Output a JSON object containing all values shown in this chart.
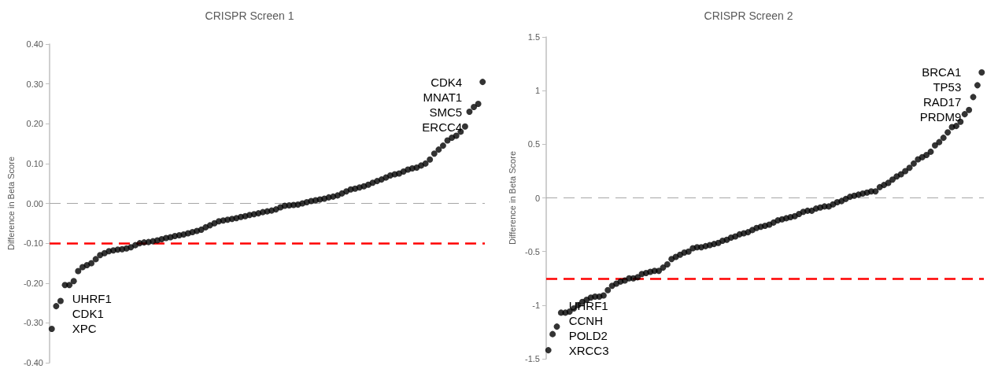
{
  "chart_data": [
    {
      "type": "scatter",
      "title": "CRISPR Screen 1",
      "ylabel": "Difference in Beta Score",
      "marker": "circle",
      "grid": false,
      "tick_labels": "y",
      "categories": [
        null,
        null,
        null,
        null,
        null,
        null,
        null,
        null,
        null,
        null,
        null,
        null,
        null,
        null,
        null,
        null,
        null,
        null,
        null,
        null,
        null,
        null,
        null,
        null,
        null,
        null,
        null,
        null,
        null,
        null,
        null,
        null,
        null,
        null,
        null,
        null,
        null,
        null,
        null,
        null,
        null,
        null,
        null,
        null,
        null,
        null,
        null,
        null,
        null,
        null,
        null,
        null,
        null,
        null,
        null,
        null,
        null,
        null,
        null,
        null,
        null,
        null,
        null,
        null,
        null,
        null,
        null,
        null,
        null,
        null,
        null,
        null,
        null,
        null,
        null,
        null,
        null,
        null,
        null,
        null,
        null,
        null,
        null,
        null,
        null,
        null,
        null,
        null,
        null,
        null,
        null,
        null,
        null,
        null,
        null,
        null,
        null,
        null,
        null
      ],
      "series": [
        {
          "color": "#000000",
          "values": [
            -0.315,
            -0.258,
            -0.245,
            -0.205,
            -0.205,
            -0.195,
            -0.17,
            -0.16,
            -0.155,
            -0.15,
            -0.14,
            -0.13,
            -0.125,
            -0.12,
            -0.118,
            -0.116,
            -0.115,
            -0.113,
            -0.11,
            -0.105,
            -0.1,
            -0.098,
            -0.097,
            -0.095,
            -0.093,
            -0.09,
            -0.087,
            -0.085,
            -0.082,
            -0.08,
            -0.078,
            -0.075,
            -0.072,
            -0.069,
            -0.066,
            -0.06,
            -0.055,
            -0.05,
            -0.045,
            -0.043,
            -0.041,
            -0.039,
            -0.037,
            -0.034,
            -0.032,
            -0.029,
            -0.027,
            -0.025,
            -0.022,
            -0.02,
            -0.018,
            -0.015,
            -0.01,
            -0.006,
            -0.005,
            -0.004,
            -0.003,
            0,
            0.003,
            0.006,
            0.008,
            0.01,
            0.012,
            0.015,
            0.017,
            0.02,
            0.025,
            0.03,
            0.035,
            0.037,
            0.04,
            0.043,
            0.047,
            0.052,
            0.056,
            0.06,
            0.065,
            0.07,
            0.073,
            0.075,
            0.08,
            0.085,
            0.088,
            0.09,
            0.095,
            0.1,
            0.11,
            0.125,
            0.135,
            0.145,
            0.158,
            0.165,
            0.17,
            0.18,
            0.193,
            0.23,
            0.242,
            0.25,
            0.305
          ]
        }
      ],
      "ylim": [
        -0.4,
        0.4
      ],
      "yticks": [
        {
          "value": -0.4,
          "label": "-0.40"
        },
        {
          "value": -0.3,
          "label": "-0.30"
        },
        {
          "value": -0.2,
          "label": "-0.20"
        },
        {
          "value": -0.1,
          "label": "-0.10"
        },
        {
          "value": 0,
          "label": "0.00"
        },
        {
          "value": 0.1,
          "label": "0.10"
        },
        {
          "value": 0.2,
          "label": "0.20"
        },
        {
          "value": 0.3,
          "label": "0.30"
        },
        {
          "value": 0.4,
          "label": "0.40"
        }
      ],
      "ref_lines": [
        {
          "axis": "y",
          "value": 0,
          "color": "#a6a6a6",
          "line_style": "dashed"
        },
        {
          "axis": "y",
          "value": -0.1,
          "color": "#ff0000",
          "line_style": "dashed"
        }
      ],
      "annotations": [
        "CDK4",
        "MNAT1",
        "SMC5",
        "ERCC4",
        "UHRF1",
        "CDK1",
        "XPC"
      ]
    },
    {
      "type": "scatter",
      "title": "CRISPR Screen 2",
      "ylabel": "Difference in Beta Score",
      "marker": "circle",
      "grid": false,
      "tick_labels": "y",
      "categories": [
        null,
        null,
        null,
        null,
        null,
        null,
        null,
        null,
        null,
        null,
        null,
        null,
        null,
        null,
        null,
        null,
        null,
        null,
        null,
        null,
        null,
        null,
        null,
        null,
        null,
        null,
        null,
        null,
        null,
        null,
        null,
        null,
        null,
        null,
        null,
        null,
        null,
        null,
        null,
        null,
        null,
        null,
        null,
        null,
        null,
        null,
        null,
        null,
        null,
        null,
        null,
        null,
        null,
        null,
        null,
        null,
        null,
        null,
        null,
        null,
        null,
        null,
        null,
        null,
        null,
        null,
        null,
        null,
        null,
        null,
        null,
        null,
        null,
        null,
        null,
        null,
        null,
        null,
        null,
        null,
        null,
        null,
        null,
        null,
        null,
        null,
        null,
        null,
        null,
        null,
        null,
        null,
        null,
        null,
        null,
        null,
        null,
        null,
        null,
        null,
        null,
        null,
        null
      ],
      "series": [
        {
          "color": "#000000",
          "values": [
            -1.42,
            -1.27,
            -1.2,
            -1.07,
            -1.07,
            -1.06,
            -1.03,
            -1.0,
            -0.97,
            -0.95,
            -0.93,
            -0.92,
            -0.92,
            -0.91,
            -0.86,
            -0.82,
            -0.8,
            -0.78,
            -0.77,
            -0.75,
            -0.75,
            -0.74,
            -0.71,
            -0.7,
            -0.69,
            -0.68,
            -0.68,
            -0.65,
            -0.62,
            -0.57,
            -0.55,
            -0.53,
            -0.51,
            -0.5,
            -0.47,
            -0.46,
            -0.46,
            -0.45,
            -0.44,
            -0.43,
            -0.42,
            -0.4,
            -0.39,
            -0.37,
            -0.36,
            -0.34,
            -0.33,
            -0.32,
            -0.3,
            -0.28,
            -0.27,
            -0.26,
            -0.25,
            -0.23,
            -0.21,
            -0.2,
            -0.19,
            -0.18,
            -0.17,
            -0.15,
            -0.13,
            -0.12,
            -0.12,
            -0.1,
            -0.09,
            -0.08,
            -0.08,
            -0.06,
            -0.04,
            -0.03,
            -0.01,
            0.01,
            0.02,
            0.03,
            0.04,
            0.05,
            0.06,
            0.06,
            0.1,
            0.12,
            0.14,
            0.17,
            0.2,
            0.22,
            0.25,
            0.28,
            0.32,
            0.36,
            0.38,
            0.4,
            0.43,
            0.49,
            0.52,
            0.56,
            0.61,
            0.66,
            0.67,
            0.71,
            0.78,
            0.82,
            0.94,
            1.05,
            1.17
          ]
        }
      ],
      "ylim": [
        -1.5,
        1.5
      ],
      "yticks": [
        -1.5,
        -1,
        -0.5,
        0,
        0.5,
        1,
        1.5
      ],
      "ref_lines": [
        {
          "axis": "y",
          "value": 0,
          "color": "#a6a6a6",
          "line_style": "dashed"
        },
        {
          "axis": "y",
          "value": -0.75,
          "color": "#ff0000",
          "line_style": "dashed"
        }
      ],
      "annotations": [
        "BRCA1",
        "TP53",
        "RAD17",
        "PRDM9",
        "UHRF1",
        "CCNH",
        "POLD2",
        "XRCC3"
      ]
    }
  ]
}
